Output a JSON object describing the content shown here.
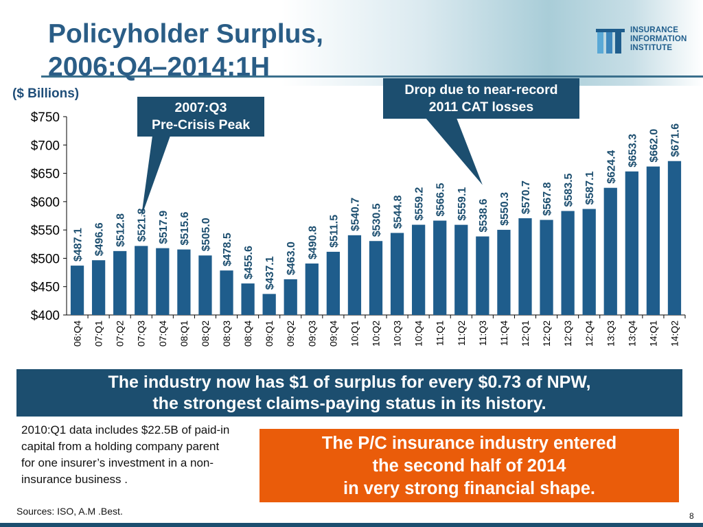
{
  "slide": {
    "title_line1": "Policyholder Surplus,",
    "title_line2": "2006:Q4–2014:1H",
    "unit_label": "($ Billions)",
    "callout_left_line1": "2007:Q3",
    "callout_left_line2": "Pre-Crisis Peak",
    "callout_right_line1": "Drop due to near-record",
    "callout_right_line2": "2011 CAT losses",
    "banner_line1": "The industry now has $1 of surplus for every $0.73 of NPW,",
    "banner_line2": "the strongest claims-paying status in its history.",
    "note": "2010:Q1 data includes $22.5B of paid-in capital from a holding company parent for one insurer’s investment in a non-insurance business .",
    "orange_line1": "The P/C insurance industry entered",
    "orange_line2": "the second half of 2014",
    "orange_line3": "in very strong financial shape.",
    "sources": "Sources: ISO, A.M .Best.",
    "page_number": "8",
    "logo_line1": "INSURANCE",
    "logo_line2": "INFORMATION",
    "logo_line3": "INSTITUTE"
  },
  "colors": {
    "bar": "#1f5d8c",
    "title": "#2a5d86",
    "callout": "#1c4e6f",
    "orange": "#ea5c0a"
  },
  "chart_data": {
    "type": "bar",
    "categories": [
      "06:Q4",
      "07:Q1",
      "07:Q2",
      "07:Q3",
      "07:Q4",
      "08:Q1",
      "08:Q2",
      "08:Q3",
      "08:Q4",
      "09:Q1",
      "09:Q2",
      "09:Q3",
      "09:Q4",
      "10:Q1",
      "10:Q2",
      "10:Q3",
      "10:Q4",
      "11:Q1",
      "11:Q2",
      "11:Q3",
      "11:Q4",
      "12:Q1",
      "12:Q2",
      "12:Q3",
      "12:Q4",
      "13:Q3",
      "13:Q4",
      "14:Q1",
      "14:Q2"
    ],
    "values": [
      487.1,
      496.6,
      512.8,
      521.8,
      517.9,
      515.6,
      505.0,
      478.5,
      455.6,
      437.1,
      463.0,
      490.8,
      511.5,
      540.7,
      530.5,
      544.8,
      559.2,
      566.5,
      559.1,
      538.6,
      550.3,
      570.7,
      567.8,
      583.5,
      587.1,
      624.4,
      653.3,
      662.0,
      671.6
    ],
    "data_labels": [
      "$487.1",
      "$496.6",
      "$512.8",
      "$521.8",
      "$517.9",
      "$515.6",
      "$505.0",
      "$478.5",
      "$455.6",
      "$437.1",
      "$463.0",
      "$490.8",
      "$511.5",
      "$540.7",
      "$530.5",
      "$544.8",
      "$559.2",
      "$566.5",
      "$559.1",
      "$538.6",
      "$550.3",
      "$570.7",
      "$567.8",
      "$583.5",
      "$587.1",
      "$624.4",
      "$653.3",
      "$662.0",
      "$671.6"
    ],
    "y_ticks": [
      400,
      450,
      500,
      550,
      600,
      650,
      700,
      750
    ],
    "y_tick_labels": [
      "$400",
      "$450",
      "$500",
      "$550",
      "$600",
      "$650",
      "$700",
      "$750"
    ],
    "ylim": [
      400,
      750
    ],
    "xlabel": "",
    "ylabel": "($ Billions)",
    "grid": false
  }
}
